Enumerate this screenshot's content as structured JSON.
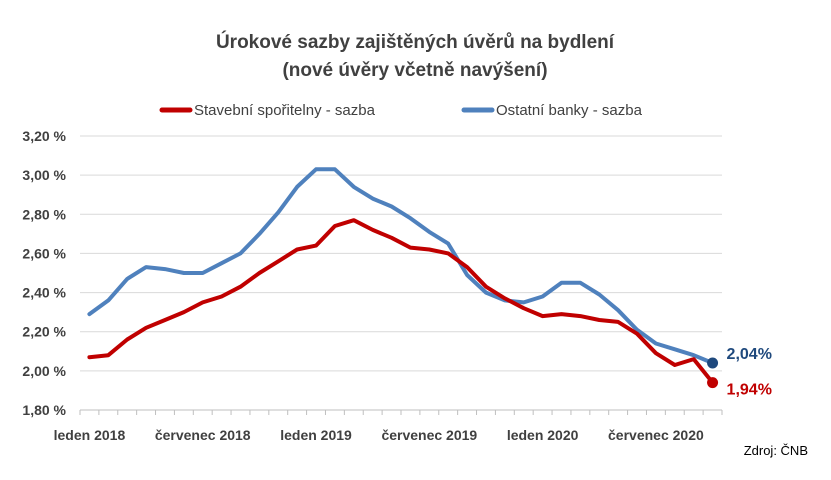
{
  "chart_data": {
    "type": "line",
    "title": "Úrokové sazby zajištěných úvěrů na bydlení",
    "subtitle": "(nové úvěry včetně navýšení)",
    "x_tick_labels": [
      "leden 2018",
      "červenec 2018",
      "leden 2019",
      "červenec 2019",
      "leden 2020",
      "červenec 2020"
    ],
    "y_tick_labels": [
      "1,80 %",
      "2,00 %",
      "2,20 %",
      "2,40 %",
      "2,60 %",
      "2,80 %",
      "3,00 %",
      "3,20 %"
    ],
    "ylim": [
      1.8,
      3.2
    ],
    "grid": true,
    "legend_position": "top",
    "source": "Zdroj: ČNB",
    "colors": {
      "series_red": "#c00000",
      "series_blue": "#4f81bd",
      "dot_blue": "#1f497d",
      "grid": "#d9d9d9",
      "axis": "#bfbfbf"
    },
    "series": [
      {
        "name": "Stavební spořitelny - sazba",
        "values": [
          2.07,
          2.08,
          2.16,
          2.22,
          2.26,
          2.3,
          2.35,
          2.38,
          2.43,
          2.5,
          2.56,
          2.62,
          2.64,
          2.74,
          2.77,
          2.72,
          2.68,
          2.63,
          2.62,
          2.6,
          2.53,
          2.43,
          2.37,
          2.32,
          2.28,
          2.29,
          2.28,
          2.26,
          2.25,
          2.19,
          2.09,
          2.03,
          2.06,
          1.94
        ],
        "end_label": "1,94%"
      },
      {
        "name": "Ostatní banky - sazba",
        "values": [
          2.29,
          2.36,
          2.47,
          2.53,
          2.52,
          2.5,
          2.5,
          2.55,
          2.6,
          2.7,
          2.81,
          2.94,
          3.03,
          3.03,
          2.94,
          2.88,
          2.84,
          2.78,
          2.71,
          2.65,
          2.49,
          2.4,
          2.36,
          2.35,
          2.38,
          2.45,
          2.45,
          2.39,
          2.31,
          2.21,
          2.14,
          2.11,
          2.08,
          2.04
        ],
        "end_label": "2,04%"
      }
    ]
  }
}
